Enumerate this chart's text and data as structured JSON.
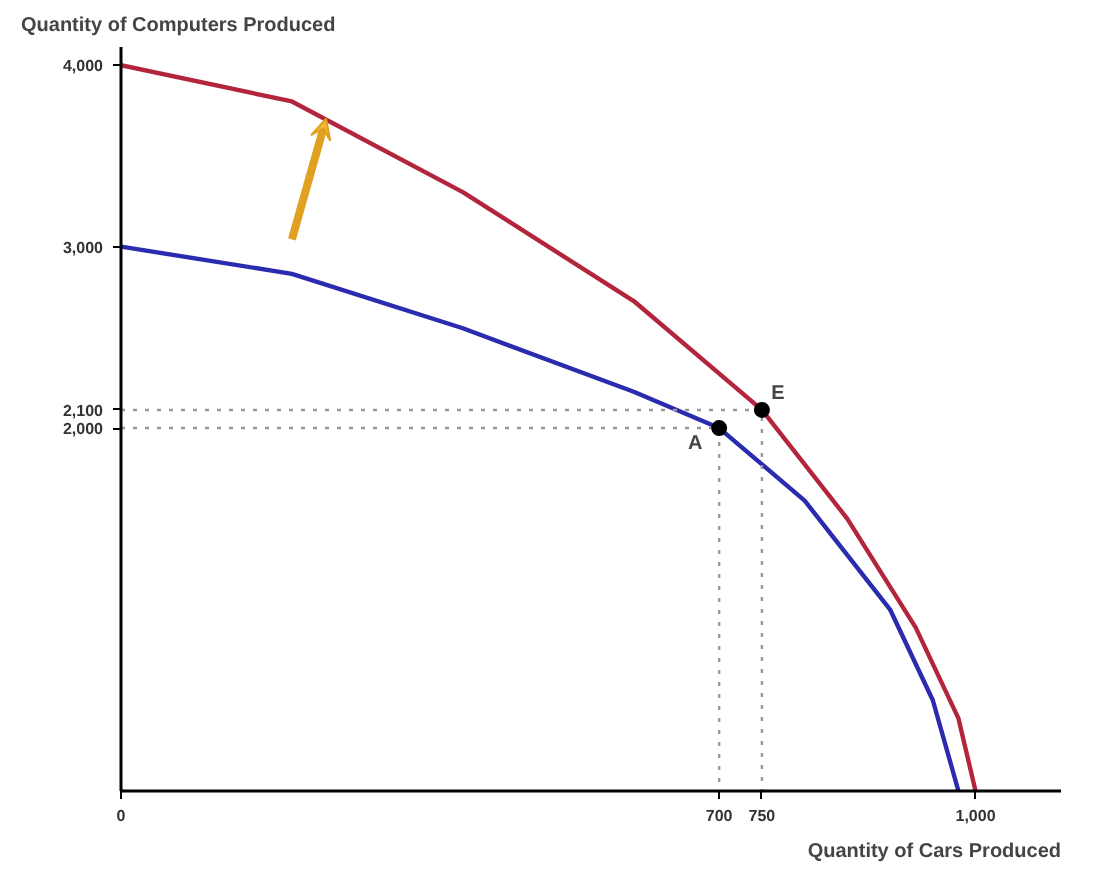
{
  "chart_data": {
    "type": "line",
    "xlabel": "Quantity of Cars Produced",
    "ylabel": "Quantity of Computers Produced",
    "series": [
      {
        "color": "#b3253c",
        "x": [
          0,
          200,
          400,
          600,
          750,
          850,
          930,
          980,
          1000
        ],
        "values": [
          4000,
          3800,
          3300,
          2700,
          2100,
          1500,
          900,
          400,
          0
        ]
      },
      {
        "color": "#2b2bb0",
        "x": [
          0,
          200,
          400,
          600,
          700,
          800,
          900,
          950,
          980
        ],
        "values": [
          3000,
          2850,
          2550,
          2200,
          2000,
          1600,
          1000,
          500,
          0
        ]
      },
      {
        "color": "#999999",
        "line_style": "dotted",
        "x": [
          0,
          700,
          700
        ],
        "values": [
          2000,
          2000,
          0
        ]
      },
      {
        "color": "#999999",
        "line_style": "dotted",
        "x": [
          0,
          750,
          750
        ],
        "values": [
          2100,
          2100,
          0
        ]
      },
      {
        "type": "scatter",
        "marker": "circle",
        "color": "#000000",
        "x": [
          700,
          750
        ],
        "values": [
          2000,
          2100
        ]
      }
    ],
    "annotations": [
      {
        "text": "A",
        "x": 700,
        "y": 2000
      },
      {
        "text": "E",
        "x": 750,
        "y": 2100
      }
    ],
    "xlim": [
      0,
      1100
    ],
    "ylim": [
      0,
      4100
    ],
    "xticks": [
      0,
      700,
      750,
      {
        "value": 1000,
        "label": "1,000"
      }
    ],
    "yticks": [
      {
        "value": 2000,
        "label": "2,000"
      },
      {
        "value": 2100,
        "label": "2,100"
      },
      {
        "value": 3000,
        "label": "3,000"
      },
      {
        "value": 4000,
        "label": "4,000"
      }
    ],
    "grid": false,
    "line_style": "solid"
  }
}
